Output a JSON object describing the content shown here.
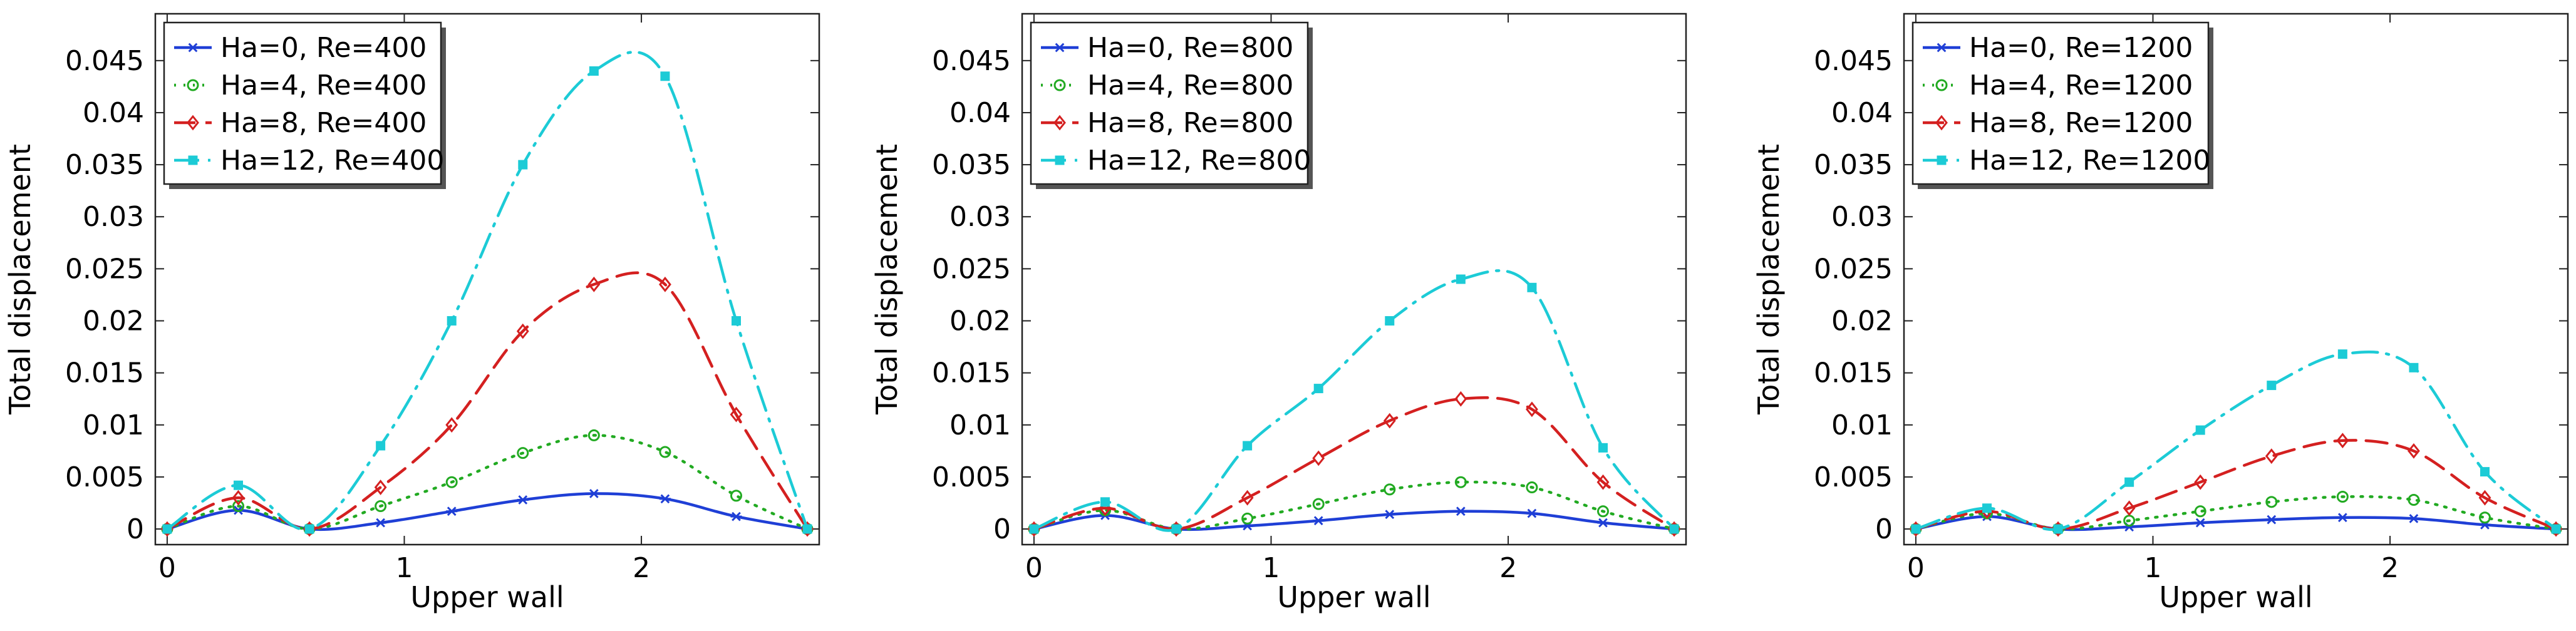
{
  "chart_data": [
    {
      "type": "line",
      "xlabel": "Upper wall",
      "ylabel": "Total displacement",
      "xlim": [
        -0.05,
        2.75
      ],
      "ylim": [
        -0.0015,
        0.0495
      ],
      "xticks": [
        {
          "v": 0,
          "label": "0"
        },
        {
          "v": 1,
          "label": "1"
        },
        {
          "v": 2,
          "label": "2"
        }
      ],
      "yticks": [
        {
          "v": 0,
          "label": "0"
        },
        {
          "v": 0.005,
          "label": "0.005"
        },
        {
          "v": 0.01,
          "label": "0.01"
        },
        {
          "v": 0.015,
          "label": "0.015"
        },
        {
          "v": 0.02,
          "label": "0.02"
        },
        {
          "v": 0.025,
          "label": "0.025"
        },
        {
          "v": 0.03,
          "label": "0.03"
        },
        {
          "v": 0.035,
          "label": "0.035"
        },
        {
          "v": 0.04,
          "label": "0.04"
        },
        {
          "v": 0.045,
          "label": "0.045"
        }
      ],
      "legend_position": "top-left",
      "series": [
        {
          "name": "Ha=0, Re=400",
          "color": "#1f3fd6",
          "dash": "solid",
          "marker": "asterisk",
          "x": [
            0,
            0.3,
            0.6,
            0.9,
            1.2,
            1.5,
            1.8,
            2.1,
            2.4,
            2.7
          ],
          "y": [
            0,
            0.0018,
            0,
            0.0006,
            0.0017,
            0.0028,
            0.0034,
            0.0029,
            0.0012,
            0
          ]
        },
        {
          "name": "Ha=4, Re=400",
          "color": "#22aa22",
          "dash": "dot",
          "marker": "circle",
          "x": [
            0,
            0.3,
            0.6,
            0.9,
            1.2,
            1.5,
            1.8,
            2.1,
            2.4,
            2.7
          ],
          "y": [
            0,
            0.0022,
            0,
            0.0022,
            0.0045,
            0.0073,
            0.009,
            0.0074,
            0.0032,
            0
          ]
        },
        {
          "name": "Ha=8, Re=400",
          "color": "#d42020",
          "dash": "dash",
          "marker": "diamond",
          "x": [
            0,
            0.3,
            0.6,
            0.9,
            1.2,
            1.5,
            1.8,
            2.1,
            2.4,
            2.7
          ],
          "y": [
            0,
            0.003,
            0,
            0.004,
            0.01,
            0.019,
            0.0235,
            0.0235,
            0.011,
            0
          ]
        },
        {
          "name": "Ha=12, Re=400",
          "color": "#1ccbd6",
          "dash": "dashdot",
          "marker": "square",
          "x": [
            0,
            0.3,
            0.6,
            0.9,
            1.2,
            1.5,
            1.8,
            2.1,
            2.4,
            2.7
          ],
          "y": [
            0,
            0.0042,
            0,
            0.008,
            0.02,
            0.035,
            0.044,
            0.0435,
            0.02,
            0
          ]
        }
      ]
    },
    {
      "type": "line",
      "xlabel": "Upper wall",
      "ylabel": "Total displacement",
      "xlim": [
        -0.05,
        2.75
      ],
      "ylim": [
        -0.0015,
        0.0495
      ],
      "xticks": [
        {
          "v": 0,
          "label": "0"
        },
        {
          "v": 1,
          "label": "1"
        },
        {
          "v": 2,
          "label": "2"
        }
      ],
      "yticks": [
        {
          "v": 0,
          "label": "0"
        },
        {
          "v": 0.005,
          "label": "0.005"
        },
        {
          "v": 0.01,
          "label": "0.01"
        },
        {
          "v": 0.015,
          "label": "0.015"
        },
        {
          "v": 0.02,
          "label": "0.02"
        },
        {
          "v": 0.025,
          "label": "0.025"
        },
        {
          "v": 0.03,
          "label": "0.03"
        },
        {
          "v": 0.035,
          "label": "0.035"
        },
        {
          "v": 0.04,
          "label": "0.04"
        },
        {
          "v": 0.045,
          "label": "0.045"
        }
      ],
      "legend_position": "top-left",
      "series": [
        {
          "name": "Ha=0, Re=800",
          "color": "#1f3fd6",
          "dash": "solid",
          "marker": "asterisk",
          "x": [
            0,
            0.3,
            0.6,
            0.9,
            1.2,
            1.5,
            1.8,
            2.1,
            2.4,
            2.7
          ],
          "y": [
            0,
            0.0013,
            0,
            0.0003,
            0.0008,
            0.0014,
            0.0017,
            0.0015,
            0.0006,
            0
          ]
        },
        {
          "name": "Ha=4, Re=800",
          "color": "#22aa22",
          "dash": "dot",
          "marker": "circle",
          "x": [
            0,
            0.3,
            0.6,
            0.9,
            1.2,
            1.5,
            1.8,
            2.1,
            2.4,
            2.7
          ],
          "y": [
            0,
            0.0018,
            0,
            0.001,
            0.0024,
            0.0038,
            0.0045,
            0.004,
            0.0017,
            0
          ]
        },
        {
          "name": "Ha=8, Re=800",
          "color": "#d42020",
          "dash": "dash",
          "marker": "diamond",
          "x": [
            0,
            0.3,
            0.6,
            0.9,
            1.2,
            1.5,
            1.8,
            2.1,
            2.4,
            2.7
          ],
          "y": [
            0,
            0.002,
            0,
            0.003,
            0.0068,
            0.0104,
            0.0125,
            0.0115,
            0.0045,
            0
          ]
        },
        {
          "name": "Ha=12, Re=800",
          "color": "#1ccbd6",
          "dash": "dashdot",
          "marker": "square",
          "x": [
            0,
            0.3,
            0.6,
            0.9,
            1.2,
            1.5,
            1.8,
            2.1,
            2.4,
            2.7
          ],
          "y": [
            0,
            0.0026,
            0,
            0.008,
            0.0135,
            0.02,
            0.024,
            0.0232,
            0.0078,
            0
          ]
        }
      ]
    },
    {
      "type": "line",
      "xlabel": "Upper wall",
      "ylabel": "Total displacement",
      "xlim": [
        -0.05,
        2.75
      ],
      "ylim": [
        -0.0015,
        0.0495
      ],
      "xticks": [
        {
          "v": 0,
          "label": "0"
        },
        {
          "v": 1,
          "label": "1"
        },
        {
          "v": 2,
          "label": "2"
        }
      ],
      "yticks": [
        {
          "v": 0,
          "label": "0"
        },
        {
          "v": 0.005,
          "label": "0.005"
        },
        {
          "v": 0.01,
          "label": "0.01"
        },
        {
          "v": 0.015,
          "label": "0.015"
        },
        {
          "v": 0.02,
          "label": "0.02"
        },
        {
          "v": 0.025,
          "label": "0.025"
        },
        {
          "v": 0.03,
          "label": "0.03"
        },
        {
          "v": 0.035,
          "label": "0.035"
        },
        {
          "v": 0.04,
          "label": "0.04"
        },
        {
          "v": 0.045,
          "label": "0.045"
        }
      ],
      "legend_position": "top-left",
      "series": [
        {
          "name": "Ha=0, Re=1200",
          "color": "#1f3fd6",
          "dash": "solid",
          "marker": "asterisk",
          "x": [
            0,
            0.3,
            0.6,
            0.9,
            1.2,
            1.5,
            1.8,
            2.1,
            2.4,
            2.7
          ],
          "y": [
            0,
            0.0012,
            0,
            0.0002,
            0.0006,
            0.0009,
            0.0011,
            0.001,
            0.0004,
            0
          ]
        },
        {
          "name": "Ha=4, Re=1200",
          "color": "#22aa22",
          "dash": "dot",
          "marker": "circle",
          "x": [
            0,
            0.3,
            0.6,
            0.9,
            1.2,
            1.5,
            1.8,
            2.1,
            2.4,
            2.7
          ],
          "y": [
            0,
            0.0015,
            0,
            0.0008,
            0.0017,
            0.0026,
            0.0031,
            0.0028,
            0.0011,
            0
          ]
        },
        {
          "name": "Ha=8, Re=1200",
          "color": "#d42020",
          "dash": "dash",
          "marker": "diamond",
          "x": [
            0,
            0.3,
            0.6,
            0.9,
            1.2,
            1.5,
            1.8,
            2.1,
            2.4,
            2.7
          ],
          "y": [
            0,
            0.0017,
            0,
            0.002,
            0.0045,
            0.007,
            0.0085,
            0.0075,
            0.003,
            0
          ]
        },
        {
          "name": "Ha=12, Re=1200",
          "color": "#1ccbd6",
          "dash": "dashdot",
          "marker": "square",
          "x": [
            0,
            0.3,
            0.6,
            0.9,
            1.2,
            1.5,
            1.8,
            2.1,
            2.4,
            2.7
          ],
          "y": [
            0,
            0.002,
            0,
            0.0045,
            0.0095,
            0.0138,
            0.0168,
            0.0155,
            0.0055,
            0
          ]
        }
      ]
    }
  ]
}
